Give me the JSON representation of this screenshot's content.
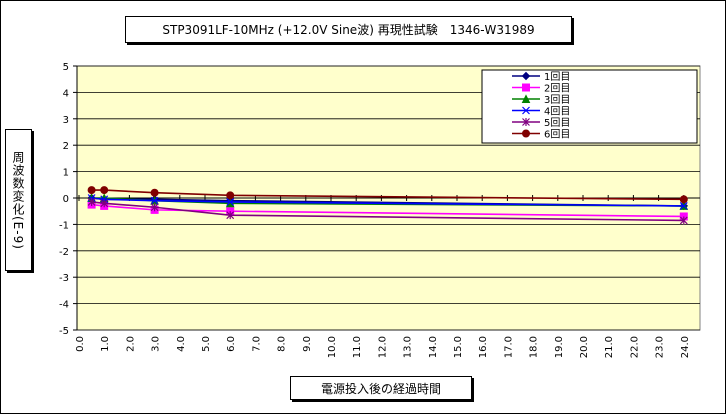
{
  "chart_data": {
    "type": "line",
    "title": "STP3091LF-10MHz (+12.0V Sine波) 再現性試験　1346-W31989",
    "xlabel": "電源投入後の経過時間",
    "ylabel": "周波数変化(E-9)",
    "ylim": [
      -5,
      5
    ],
    "xlim": [
      0,
      25
    ],
    "yticks": [
      "5",
      "4",
      "3",
      "2",
      "1",
      "0",
      "-1",
      "-2",
      "-3",
      "-4",
      "-5"
    ],
    "xticks": [
      "0.0",
      "1.0",
      "2.0",
      "3.0",
      "4.0",
      "5.0",
      "6.0",
      "7.0",
      "8.0",
      "9.0",
      "10.0",
      "11.0",
      "12.0",
      "13.0",
      "14.0",
      "15.0",
      "16.0",
      "17.0",
      "18.0",
      "19.0",
      "20.0",
      "21.0",
      "22.0",
      "23.0",
      "24.0"
    ],
    "grid": true,
    "legend_position": "top-right",
    "series": [
      {
        "name": "1回目",
        "color": "#000080",
        "marker": "diamond",
        "x": [
          0.5,
          1,
          3,
          6,
          24
        ],
        "y": [
          0.0,
          -0.05,
          -0.05,
          -0.1,
          -0.3
        ]
      },
      {
        "name": "2回目",
        "color": "#FF00FF",
        "marker": "square",
        "x": [
          0.5,
          1,
          3,
          6,
          24
        ],
        "y": [
          -0.25,
          -0.3,
          -0.45,
          -0.5,
          -0.7
        ]
      },
      {
        "name": "3回目",
        "color": "#008000",
        "marker": "triangle",
        "x": [
          0.5,
          1,
          3,
          6,
          24
        ],
        "y": [
          0.0,
          0.0,
          -0.1,
          -0.2,
          -0.3
        ]
      },
      {
        "name": "4回目",
        "color": "#0000FF",
        "marker": "x",
        "x": [
          0.5,
          1,
          3,
          6,
          24
        ],
        "y": [
          0.0,
          -0.05,
          -0.1,
          -0.15,
          -0.3
        ]
      },
      {
        "name": "5回目",
        "color": "#800080",
        "marker": "star",
        "x": [
          0.5,
          1,
          3,
          6,
          24
        ],
        "y": [
          -0.15,
          -0.2,
          -0.35,
          -0.65,
          -0.85
        ]
      },
      {
        "name": "6回目",
        "color": "#800000",
        "marker": "circle",
        "x": [
          0.5,
          1,
          3,
          6,
          24
        ],
        "y": [
          0.3,
          0.3,
          0.2,
          0.1,
          -0.05
        ]
      }
    ]
  }
}
